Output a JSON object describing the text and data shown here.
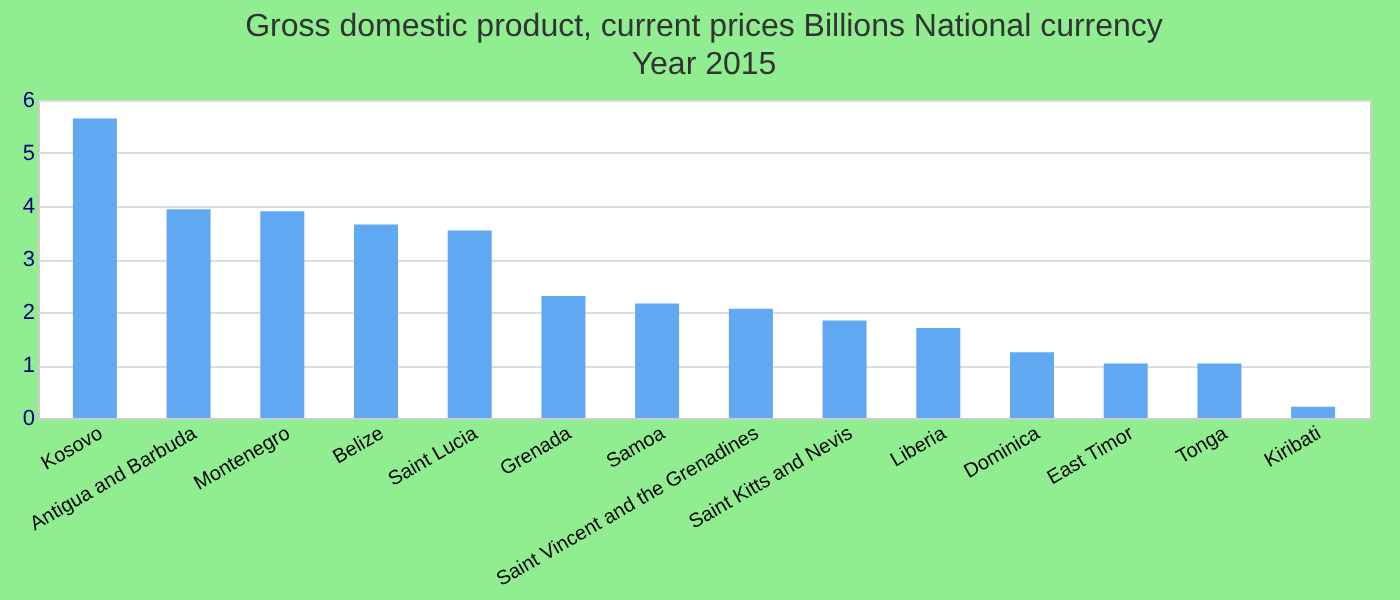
{
  "chart_data": {
    "type": "bar",
    "title": "Gross domestic product, current prices Billions National currency",
    "subtitle": "Year 2015",
    "categories": [
      "Kosovo",
      "Antigua and Barbuda",
      "Montenegro",
      "Belize",
      "Saint Lucia",
      "Grenada",
      "Samoa",
      "Saint Vincent and the Grenadines",
      "Saint Kitts and Nevis",
      "Liberia",
      "Dominica",
      "East Timor",
      "Tonga",
      "Kiribati"
    ],
    "values": [
      5.65,
      3.94,
      3.9,
      3.65,
      3.54,
      2.3,
      2.16,
      2.06,
      1.84,
      1.7,
      1.24,
      1.03,
      1.03,
      0.21
    ],
    "color": "#61a8f3",
    "ylim": [
      0,
      6
    ],
    "yticks": [
      0,
      1,
      2,
      3,
      4,
      5,
      6
    ],
    "grid": "y"
  }
}
